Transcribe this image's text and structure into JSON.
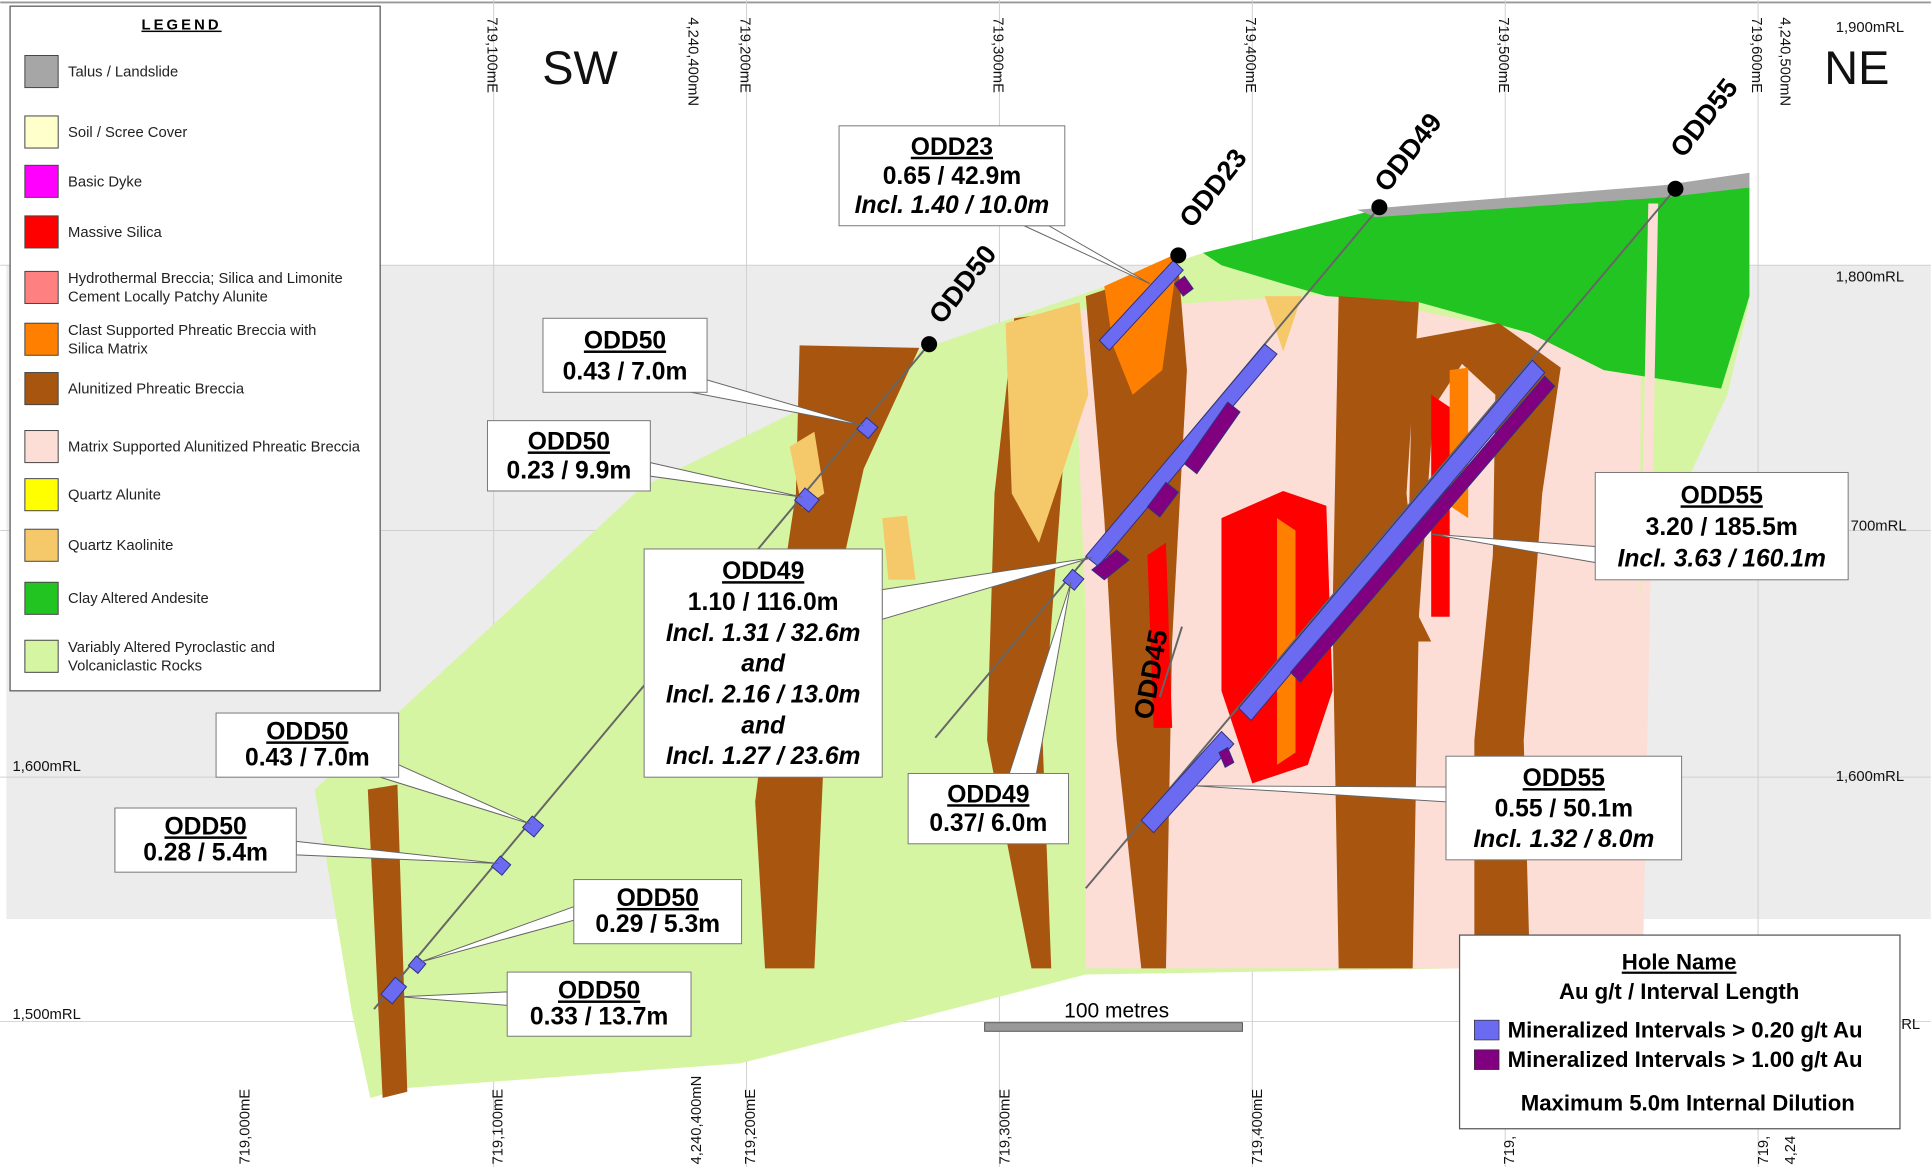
{
  "legend": {
    "title": "LEGEND",
    "items": [
      {
        "lines": [
          "Talus / Landslide"
        ],
        "color": "#a6a6a6"
      },
      {
        "lines": [
          "Soil / Scree Cover"
        ],
        "color": "#ffffcc"
      },
      {
        "lines": [
          "Basic Dyke"
        ],
        "color": "#ff00ff"
      },
      {
        "lines": [
          "Massive Silica"
        ],
        "color": "#ff0000"
      },
      {
        "lines": [
          "Hydrothermal Breccia; Silica and Limonite",
          "Cement Locally Patchy Alunite"
        ],
        "color": "#ff8080"
      },
      {
        "lines": [
          "Clast Supported Phreatic Breccia with",
          "Silica Matrix"
        ],
        "color": "#ff8000"
      },
      {
        "lines": [
          "Alunitized Phreatic Breccia"
        ],
        "color": "#a8550f"
      },
      {
        "lines": [
          "Matrix Supported Alunitized Phreatic Breccia"
        ],
        "color": "#fcded6"
      },
      {
        "lines": [
          "Quartz Alunite"
        ],
        "color": "#ffff00"
      },
      {
        "lines": [
          "Quartz Kaolinite"
        ],
        "color": "#f5c86a"
      },
      {
        "lines": [
          "Clay Altered Andesite"
        ],
        "color": "#22c422"
      },
      {
        "lines": [
          "Variably Altered Pyroclastic and",
          "Volcaniclastic Rocks"
        ],
        "color": "#d6f5a3"
      }
    ]
  },
  "directions": [
    "SW",
    "NE"
  ],
  "grid_labels_top": [
    "719,100mE",
    "4,240,400mN",
    "719,200mE",
    "719,300mE",
    "719,400mE",
    "719,500mE",
    "719,600mE",
    "4,240,500mN"
  ],
  "grid_labels_bottom": [
    "719,000mE",
    "719,100mE",
    "4,240,400mN",
    "719,200mE",
    "719,300mE",
    "719,400mE",
    "719,",
    "719,",
    "4,24"
  ],
  "rl_labels_left": [
    "1,600mRL",
    "1,500mRL"
  ],
  "rl_labels_right": [
    "1,900mRL",
    "1,800mRL",
    "700mRL",
    "1,600mRL",
    "RL"
  ],
  "holes": [
    "ODD50",
    "ODD23",
    "ODD49",
    "ODD55",
    "ODD45"
  ],
  "callouts": [
    {
      "lines": [
        "ODD23",
        "0.65 / 42.9m",
        "Incl. 1.40 / 10.0m"
      ]
    },
    {
      "lines": [
        "ODD50",
        "0.43 / 7.0m"
      ]
    },
    {
      "lines": [
        "ODD50",
        "0.23 / 9.9m"
      ]
    },
    {
      "lines": [
        "ODD49",
        "1.10 / 116.0m",
        "Incl. 1.31 / 32.6m",
        "and",
        "Incl. 2.16 / 13.0m",
        "and",
        "Incl. 1.27 / 23.6m"
      ]
    },
    {
      "lines": [
        "ODD50",
        "0.43 / 7.0m"
      ]
    },
    {
      "lines": [
        "ODD50",
        "0.28 / 5.4m"
      ]
    },
    {
      "lines": [
        "ODD50",
        "0.29 / 5.3m"
      ]
    },
    {
      "lines": [
        "ODD50",
        "0.33 / 13.7m"
      ]
    },
    {
      "lines": [
        "ODD49",
        "0.37/ 6.0m"
      ]
    },
    {
      "lines": [
        "ODD55",
        "3.20 / 185.5m",
        "Incl. 3.63 / 160.1m"
      ]
    },
    {
      "lines": [
        "ODD55",
        "0.55 / 50.1m",
        "Incl. 1.32 / 8.0m"
      ]
    }
  ],
  "scale_bar": "100 metres",
  "key": {
    "title": "Hole Name",
    "subtitle": "Au g/t / Interval Length",
    "items": [
      {
        "label": "Mineralized Intervals > 0.20 g/t Au",
        "color": "#6b6bf2"
      },
      {
        "label": "Mineralized Intervals > 1.00 g/t Au",
        "color": "#800080"
      }
    ],
    "note": "Maximum 5.0m Internal Dilution"
  }
}
